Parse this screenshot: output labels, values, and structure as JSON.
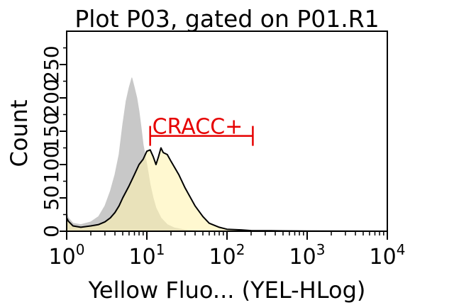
{
  "chart_data": {
    "type": "area",
    "title": "Plot P03, gated on P01.R1",
    "xlabel": "Yellow Fluo... (YEL-HLog)",
    "ylabel": "Count",
    "x_scale": "log",
    "xlim": [
      1,
      10000
    ],
    "ylim": [
      0,
      300
    ],
    "x_ticks": [
      {
        "value": 1,
        "base": "10",
        "exp": "0"
      },
      {
        "value": 10,
        "base": "10",
        "exp": "1"
      },
      {
        "value": 100,
        "base": "10",
        "exp": "2"
      },
      {
        "value": 1000,
        "base": "10",
        "exp": "3"
      },
      {
        "value": 10000,
        "base": "10",
        "exp": "4"
      }
    ],
    "y_ticks": [
      {
        "value": 0,
        "label": "0"
      },
      {
        "value": 50,
        "label": "50"
      },
      {
        "value": 100,
        "label": "100"
      },
      {
        "value": 150,
        "label": "150"
      },
      {
        "value": 200,
        "label": "200"
      },
      {
        "value": 250,
        "label": "250"
      }
    ],
    "series": [
      {
        "fill": "#c8c8c8",
        "stroke": "#c8c8c8",
        "x": [
          1,
          1.05,
          1.2,
          1.5,
          2,
          2.5,
          3,
          3.5,
          4,
          4.5,
          5,
          5.5,
          6,
          6.5,
          7,
          7.5,
          8,
          8.5,
          9,
          10,
          11,
          12,
          13,
          15,
          18,
          22,
          30,
          50
        ],
        "y": [
          28,
          20,
          12,
          10,
          14,
          22,
          38,
          60,
          85,
          115,
          160,
          195,
          215,
          230,
          215,
          200,
          180,
          155,
          130,
          100,
          70,
          50,
          35,
          20,
          10,
          5,
          2,
          0
        ]
      },
      {
        "fill": "#fff3b0",
        "stroke": "#000000",
        "x": [
          1,
          1.05,
          1.2,
          1.5,
          2,
          2.5,
          3,
          3.5,
          4,
          4.5,
          5,
          6,
          7,
          8,
          9,
          10,
          11,
          12,
          13,
          14,
          15,
          16,
          18,
          20,
          25,
          30,
          40,
          50,
          60,
          80,
          100,
          150,
          200,
          300,
          500,
          1000,
          10000
        ],
        "y": [
          20,
          15,
          8,
          6,
          8,
          10,
          14,
          20,
          28,
          38,
          50,
          68,
          85,
          100,
          108,
          120,
          122,
          112,
          100,
          112,
          125,
          118,
          115,
          105,
          85,
          65,
          38,
          22,
          12,
          6,
          3,
          2,
          1,
          0.8,
          0.5,
          0.3,
          0
        ]
      }
    ],
    "gate": {
      "label": "CRACC+",
      "x_start": 11,
      "x_end": 210,
      "y": 143,
      "color": "#e60000"
    }
  }
}
